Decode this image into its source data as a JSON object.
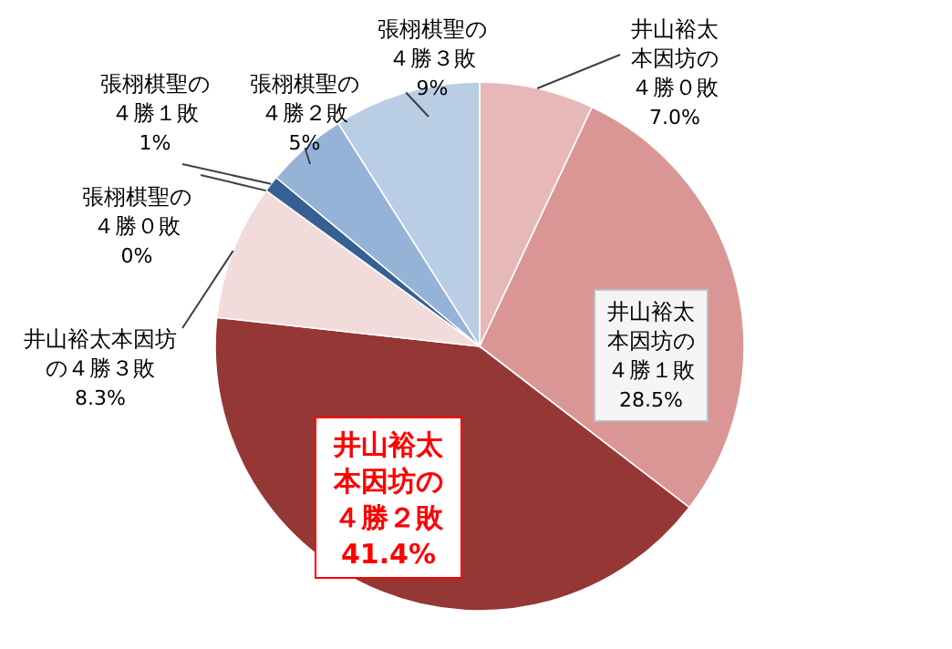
{
  "chart_data": {
    "type": "pie",
    "categories": [
      "井山裕太本因坊の４勝０敗",
      "井山裕太本因坊の４勝１敗",
      "井山裕太本因坊の４勝２敗",
      "井山裕太本因坊の４勝３敗",
      "張栩棋聖の４勝０敗",
      "張栩棋聖の４勝１敗",
      "張栩棋聖の４勝２敗",
      "張栩棋聖の４勝３敗"
    ],
    "values": [
      7.0,
      28.5,
      41.4,
      8.3,
      0,
      1,
      5,
      9
    ],
    "value_labels": [
      "7.0%",
      "28.5%",
      "41.4%",
      "8.3%",
      "0%",
      "1%",
      "5%",
      "9%"
    ],
    "colors": [
      "#e6b9b8",
      "#d99694",
      "#953735",
      "#f2dcdb",
      null,
      "#376092",
      "#95b3d7",
      "#b9cde5"
    ],
    "legend": false
  }
}
